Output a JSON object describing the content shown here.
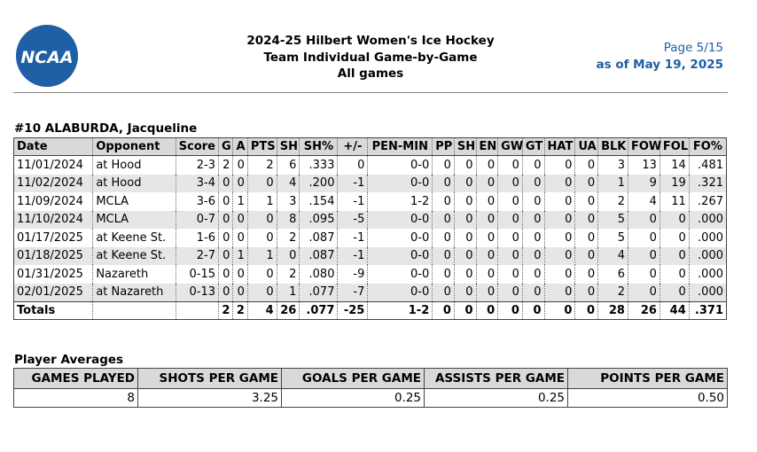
{
  "header": {
    "logo_text": "NCAA",
    "title_lines": [
      "2024-25 Hilbert Women's Ice Hockey",
      "Team Individual Game-by-Game",
      "All games"
    ],
    "page": "Page 5/15",
    "as_of": "as of May 19, 2025",
    "colors": {
      "brand_blue": "#1f5fa6",
      "header_bg": "#d9d9d9",
      "row_shade": "#e6e6e6"
    }
  },
  "player": "#10 ALABURDA, Jacqueline",
  "stats": {
    "columns": [
      "Date",
      "Opponent",
      "Score",
      "G",
      "A",
      "PTS",
      "SH",
      "SH%",
      "+/-",
      "PEN-MIN",
      "PP",
      "SH",
      "EN",
      "GW",
      "GT",
      "HAT",
      "UA",
      "BLK",
      "FOW",
      "FOL",
      "FO%"
    ],
    "rows": [
      [
        "11/01/2024",
        "at Hood",
        "2-3",
        "2",
        "0",
        "2",
        "6",
        ".333",
        "0",
        "0-0",
        "0",
        "0",
        "0",
        "0",
        "0",
        "0",
        "0",
        "3",
        "13",
        "14",
        ".481"
      ],
      [
        "11/02/2024",
        "at Hood",
        "3-4",
        "0",
        "0",
        "0",
        "4",
        ".200",
        "-1",
        "0-0",
        "0",
        "0",
        "0",
        "0",
        "0",
        "0",
        "0",
        "1",
        "9",
        "19",
        ".321"
      ],
      [
        "11/09/2024",
        "MCLA",
        "3-6",
        "0",
        "1",
        "1",
        "3",
        ".154",
        "-1",
        "1-2",
        "0",
        "0",
        "0",
        "0",
        "0",
        "0",
        "0",
        "2",
        "4",
        "11",
        ".267"
      ],
      [
        "11/10/2024",
        "MCLA",
        "0-7",
        "0",
        "0",
        "0",
        "8",
        ".095",
        "-5",
        "0-0",
        "0",
        "0",
        "0",
        "0",
        "0",
        "0",
        "0",
        "5",
        "0",
        "0",
        ".000"
      ],
      [
        "01/17/2025",
        "at Keene St.",
        "1-6",
        "0",
        "0",
        "0",
        "2",
        ".087",
        "-1",
        "0-0",
        "0",
        "0",
        "0",
        "0",
        "0",
        "0",
        "0",
        "5",
        "0",
        "0",
        ".000"
      ],
      [
        "01/18/2025",
        "at Keene St.",
        "2-7",
        "0",
        "1",
        "1",
        "0",
        ".087",
        "-1",
        "0-0",
        "0",
        "0",
        "0",
        "0",
        "0",
        "0",
        "0",
        "4",
        "0",
        "0",
        ".000"
      ],
      [
        "01/31/2025",
        "Nazareth",
        "0-15",
        "0",
        "0",
        "0",
        "2",
        ".080",
        "-9",
        "0-0",
        "0",
        "0",
        "0",
        "0",
        "0",
        "0",
        "0",
        "6",
        "0",
        "0",
        ".000"
      ],
      [
        "02/01/2025",
        "at Nazareth",
        "0-13",
        "0",
        "0",
        "0",
        "1",
        ".077",
        "-7",
        "0-0",
        "0",
        "0",
        "0",
        "0",
        "0",
        "0",
        "0",
        "2",
        "0",
        "0",
        ".000"
      ]
    ],
    "totals": [
      "Totals",
      "",
      "",
      "2",
      "2",
      "4",
      "26",
      ".077",
      "-25",
      "1-2",
      "0",
      "0",
      "0",
      "0",
      "0",
      "0",
      "0",
      "28",
      "26",
      "44",
      ".371"
    ]
  },
  "averages": {
    "title": "Player Averages",
    "columns": [
      "GAMES PLAYED",
      "SHOTS PER GAME",
      "GOALS PER GAME",
      "ASSISTS PER GAME",
      "POINTS PER GAME"
    ],
    "values": [
      "8",
      "3.25",
      "0.25",
      "0.25",
      "0.50"
    ]
  }
}
